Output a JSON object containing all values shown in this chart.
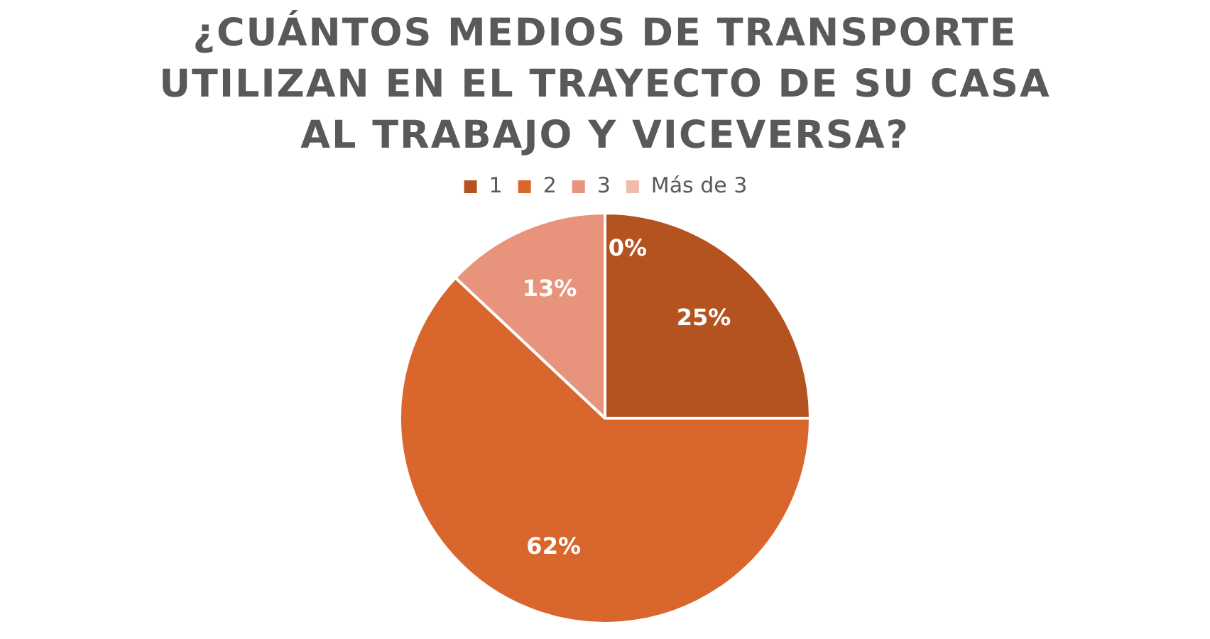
{
  "chart_data": {
    "type": "pie",
    "title": "¿CUÁNTOS MEDIOS DE TRANSPORTE UTILIZAN EN EL TRAYECTO DE SU CASA AL TRABAJO Y VICEVERSA?",
    "categories": [
      "1",
      "2",
      "3",
      "Más de 3"
    ],
    "values": [
      25,
      62,
      13,
      0
    ],
    "colors": [
      "#b4531f",
      "#d9662d",
      "#e8937b",
      "#f0bcaa"
    ],
    "value_labels": [
      "25%",
      "62%",
      "13%",
      "0%"
    ],
    "legend": "top"
  }
}
